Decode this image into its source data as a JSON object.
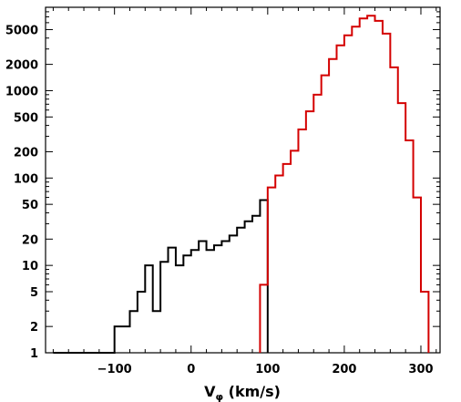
{
  "chart_data": {
    "type": "histogram",
    "xlabel": "V",
    "xlabel_sub": "φ",
    "xlabel_unit": " (km/s)",
    "ylabel": "",
    "title": "",
    "yscale": "log",
    "xlim": [
      -190,
      325
    ],
    "ylim": [
      1,
      9000
    ],
    "x_ticks": [
      -100,
      0,
      100,
      200,
      300
    ],
    "x_tick_labels": [
      "−100",
      "0",
      "100",
      "200",
      "300"
    ],
    "y_ticks": [
      1,
      2,
      5,
      10,
      20,
      50,
      100,
      200,
      500,
      1000,
      2000,
      5000
    ],
    "y_tick_labels": [
      "1",
      "2",
      "5",
      "10",
      "20",
      "50",
      "100",
      "200",
      "500",
      "1000",
      "2000",
      "5000"
    ],
    "grid": false,
    "bin_width": 10,
    "series": [
      {
        "color": "#000000",
        "bin_edges": [
          -180,
          -170,
          -160,
          -150,
          -140,
          -130,
          -120,
          -110,
          -100,
          -90,
          -80,
          -70,
          -60,
          -50,
          -40,
          -30,
          -20,
          -10,
          0,
          10,
          20,
          30,
          40,
          50,
          60,
          70,
          80,
          90,
          100
        ],
        "counts": [
          1,
          1,
          1,
          1,
          1,
          1,
          1,
          1,
          2,
          2,
          3,
          5,
          10,
          3,
          11,
          16,
          10,
          13,
          15,
          19,
          15,
          17,
          19,
          22,
          27,
          32,
          37,
          56
        ]
      },
      {
        "color": "#d40000",
        "bin_edges": [
          90,
          100,
          110,
          120,
          130,
          140,
          150,
          160,
          170,
          180,
          190,
          200,
          210,
          220,
          230,
          240,
          250,
          260,
          270,
          280,
          290,
          300,
          310
        ],
        "counts": [
          6,
          78,
          107,
          145,
          205,
          360,
          580,
          900,
          1500,
          2300,
          3300,
          4300,
          5400,
          6700,
          7200,
          6300,
          4500,
          1850,
          720,
          270,
          60,
          5
        ]
      }
    ]
  }
}
